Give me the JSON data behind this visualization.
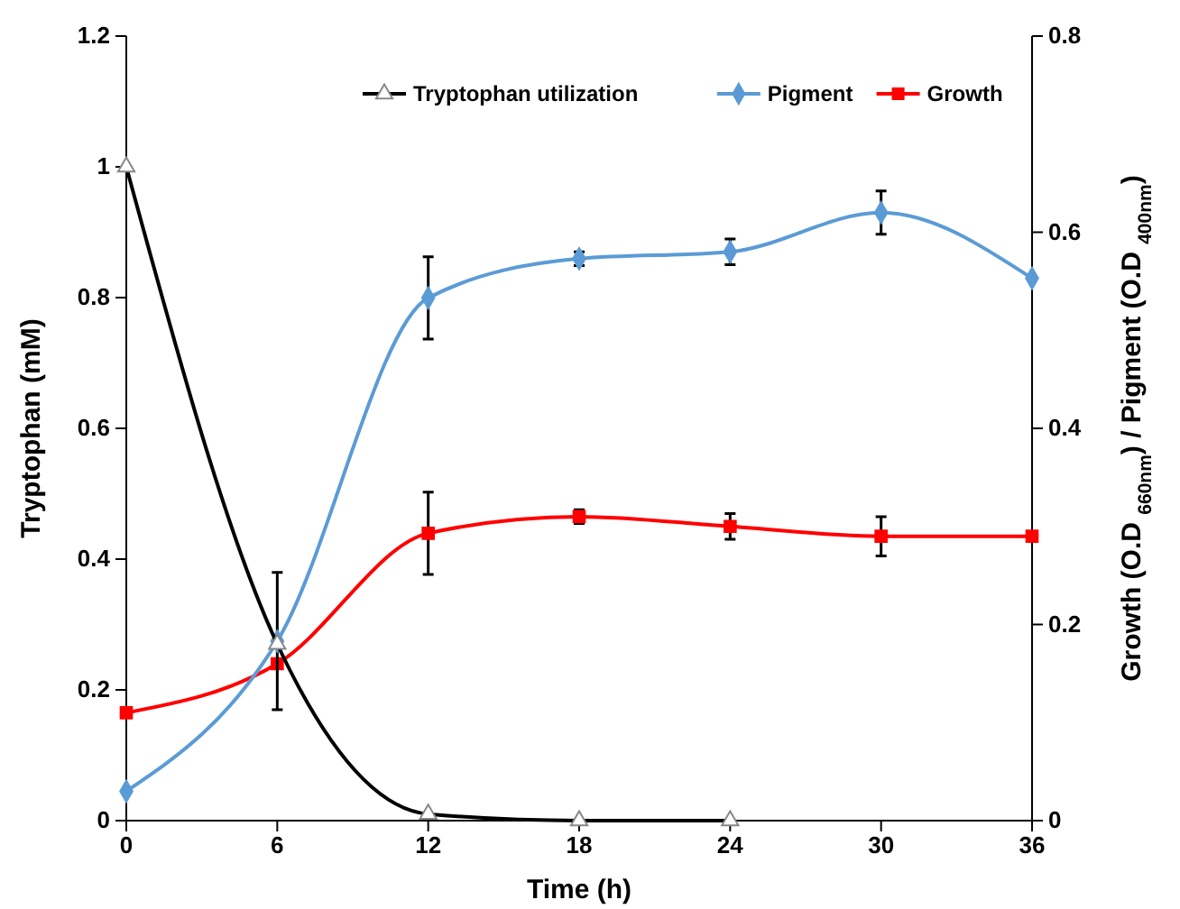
{
  "chart_data": {
    "type": "line",
    "xlabel": "Time (h)",
    "ylabel": "Tryptophan (mM)",
    "y2label": "Growth (O.D $_{660nm}$) / Pigment (O.D $_{400nm}$)",
    "x": [
      0,
      6,
      12,
      18,
      24,
      30,
      36
    ],
    "xlim": [
      0,
      36
    ],
    "xticks": [
      0,
      6,
      12,
      18,
      24,
      30,
      36
    ],
    "ylim": [
      0,
      1.2
    ],
    "yticks": [
      0,
      0.2,
      0.4,
      0.6,
      0.8,
      1,
      1.2
    ],
    "y2lim": [
      0,
      0.8
    ],
    "y2ticks": [
      0,
      0.2,
      0.4,
      0.6,
      0.8
    ],
    "legend": "top right",
    "grid": false,
    "series": [
      {
        "name": "Tryptophan utilization",
        "color": "#000000",
        "marker": "triangle",
        "x": [
          0,
          6,
          12,
          18,
          24
        ],
        "values": [
          1.0,
          0.27,
          0.01,
          0,
          0
        ]
      },
      {
        "name": "Pigment",
        "color": "#5b9bd5",
        "marker": "diamond",
        "axis": "y2",
        "values": [
          0.03,
          0.183,
          0.533,
          0.573,
          0.58,
          0.62,
          0.553
        ],
        "errors": [
          null,
          0.07,
          0.042,
          0.007,
          0.013,
          0.022,
          null
        ]
      },
      {
        "name": "Growth",
        "color": "#ff0000",
        "marker": "square",
        "axis": "y2",
        "values": [
          0.11,
          0.16,
          0.293,
          0.31,
          0.3,
          0.29,
          0.29
        ],
        "errors": [
          null,
          null,
          0.042,
          0.007,
          0.013,
          0.02,
          null
        ]
      }
    ]
  }
}
